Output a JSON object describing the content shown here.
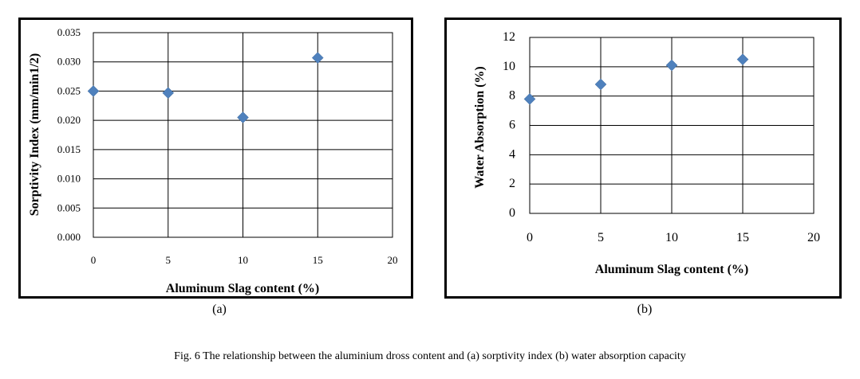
{
  "chart_data": [
    {
      "type": "scatter",
      "id": "a",
      "xlabel": "Aluminum Slag content (%)",
      "ylabel": "Sorptivity Index (mm/min1/2)",
      "xlim": [
        0,
        20
      ],
      "ylim": [
        0,
        0.035
      ],
      "xticks": [
        "0",
        "5",
        "10",
        "15",
        "20"
      ],
      "yticks": [
        "0.000",
        "0.005",
        "0.010",
        "0.015",
        "0.020",
        "0.025",
        "0.030",
        "0.035"
      ],
      "x": [
        0,
        5,
        10,
        15
      ],
      "y": [
        0.025,
        0.0247,
        0.0205,
        0.0307
      ],
      "grid": true,
      "marker_color": "#4F81BD"
    },
    {
      "type": "scatter",
      "id": "b",
      "xlabel": "Aluminum Slag content (%)",
      "ylabel": "Water Absorption (%)",
      "xlim": [
        0,
        20
      ],
      "ylim": [
        0,
        12
      ],
      "xticks": [
        "0",
        "5",
        "10",
        "15",
        "20"
      ],
      "yticks": [
        "0",
        "2",
        "4",
        "6",
        "8",
        "10",
        "12"
      ],
      "x": [
        0,
        5,
        10,
        15
      ],
      "y": [
        7.8,
        8.8,
        10.1,
        10.5
      ],
      "grid": true,
      "marker_color": "#4F81BD"
    }
  ],
  "labels": {
    "a": "(a)",
    "b": "(b)"
  },
  "caption": "Fig. 6 The relationship between the aluminium dross content and (a) sorptivity index (b) water absorption capacity"
}
